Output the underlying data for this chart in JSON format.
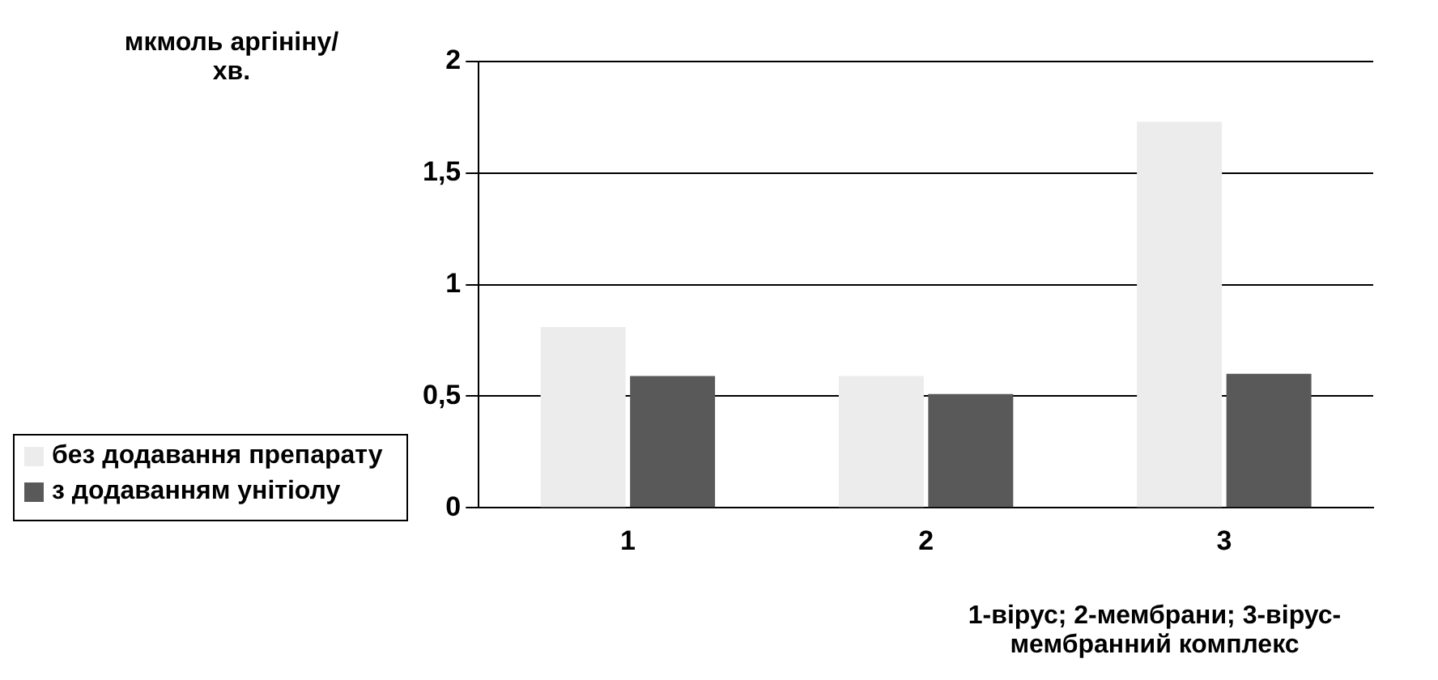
{
  "chart_data": {
    "type": "bar",
    "ylabel": "мкмоль аргініну/хв.",
    "xlabel": "1-вірус; 2-мембрани; 3-вірус-мембранний комплекс",
    "categories": [
      "1",
      "2",
      "3"
    ],
    "series": [
      {
        "name": "без додавання препарату",
        "color": "#ececec",
        "values": [
          0.81,
          0.59,
          1.73
        ]
      },
      {
        "name": "з додаванням унітіолу",
        "color": "#595959",
        "values": [
          0.59,
          0.51,
          0.6
        ]
      }
    ],
    "ylim": [
      0,
      2
    ],
    "yticks": [
      0,
      {
        "value": 0.5,
        "label": "0,5"
      },
      1,
      {
        "value": 1.5,
        "label": "1,5"
      },
      2
    ],
    "grid": "y",
    "legend": "bottom left"
  }
}
